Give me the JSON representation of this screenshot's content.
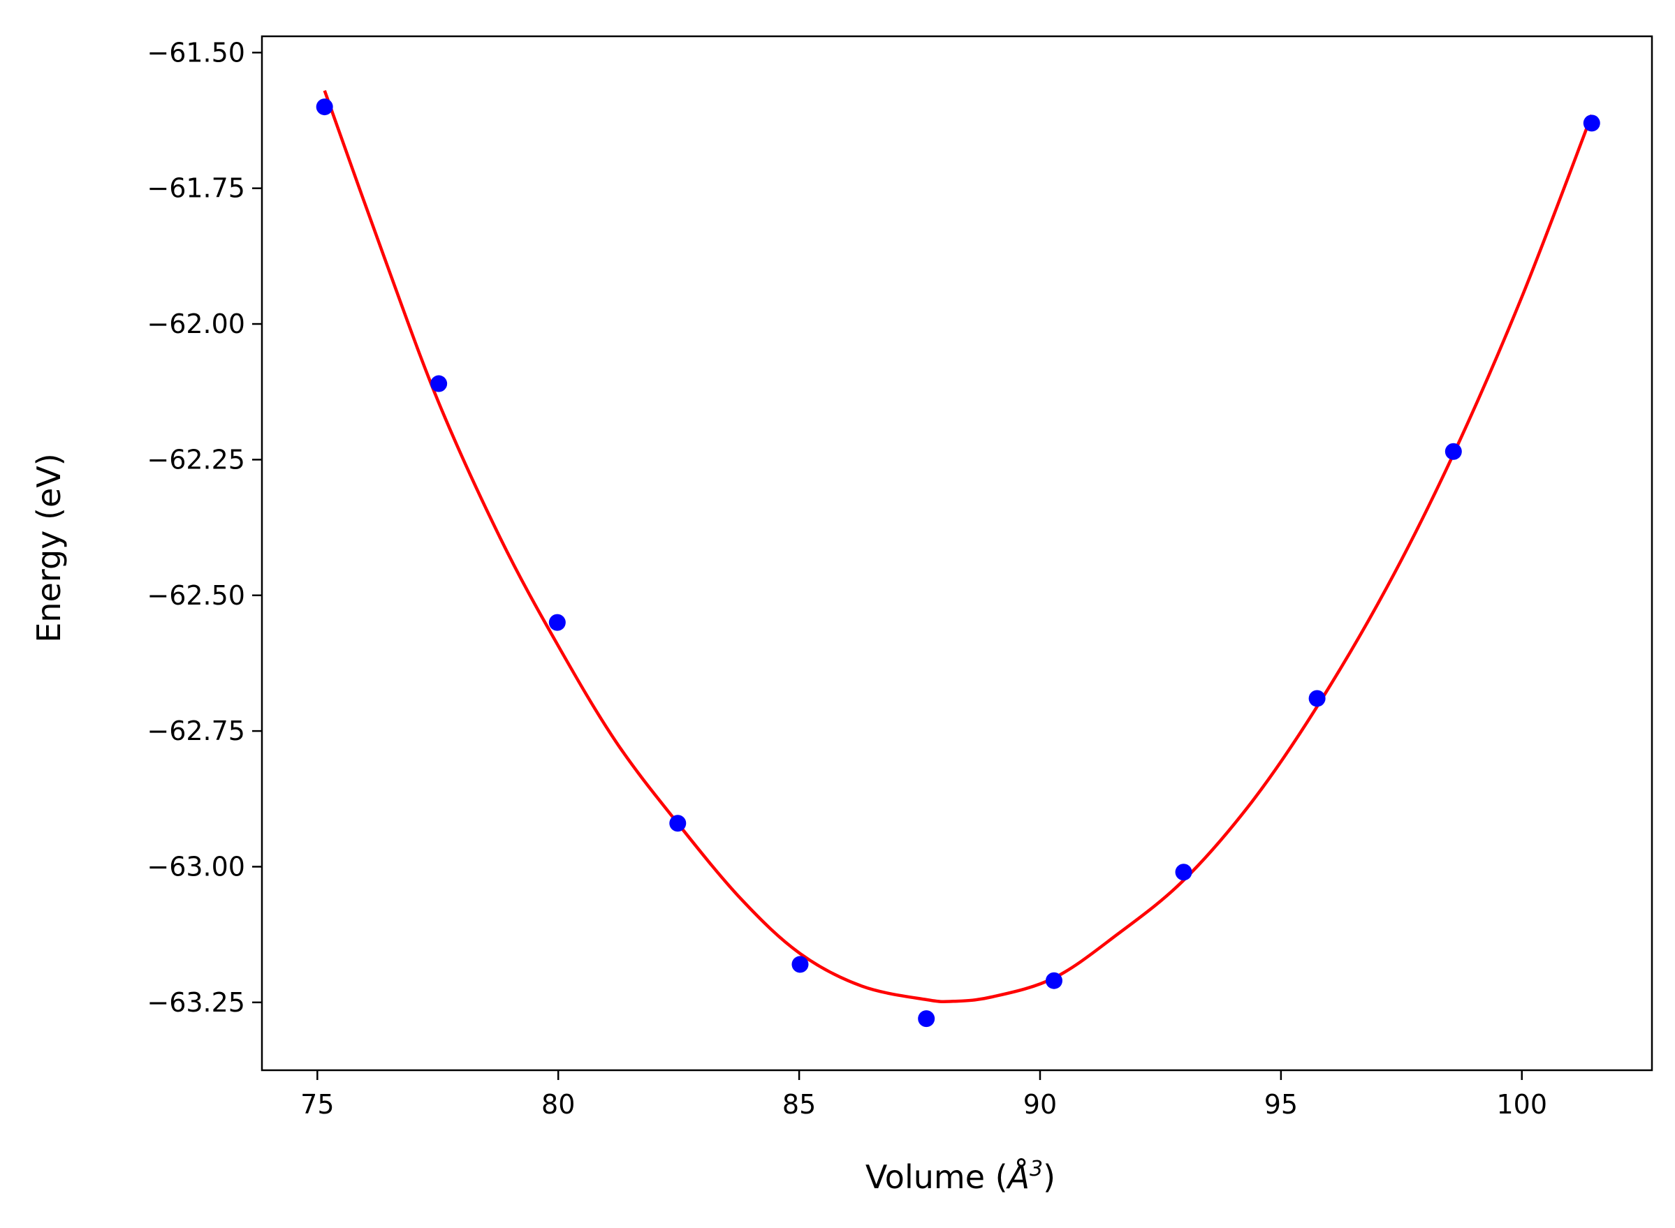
{
  "chart_data": {
    "type": "scatter",
    "title": "",
    "xlabel_prefix": "Volume (",
    "xlabel_unit": "Å",
    "xlabel_power": "3",
    "xlabel_suffix": ")",
    "ylabel": "Energy (eV)",
    "xlim": [
      73.85,
      102.7
    ],
    "ylim": [
      -63.375,
      -61.47
    ],
    "xticks": [
      75,
      80,
      85,
      90,
      95,
      100
    ],
    "xtick_labels": [
      "75",
      "80",
      "85",
      "90",
      "95",
      "100"
    ],
    "yticks": [
      -61.5,
      -61.75,
      -62.0,
      -62.25,
      -62.5,
      -62.75,
      -63.0,
      -63.25
    ],
    "ytick_labels": [
      "−61.50",
      "−61.75",
      "−62.00",
      "−62.25",
      "−62.50",
      "−62.75",
      "−63.00",
      "−63.25"
    ],
    "grid": false,
    "series": [
      {
        "kind": "points",
        "color": "#0000ff",
        "x": [
          75.15,
          77.52,
          79.98,
          82.48,
          85.02,
          87.64,
          90.29,
          92.98,
          95.75,
          98.58,
          101.45
        ],
        "y": [
          -61.6,
          -62.11,
          -62.55,
          -62.92,
          -63.18,
          -63.28,
          -63.21,
          -63.01,
          -62.69,
          -62.235,
          -61.63
        ]
      },
      {
        "kind": "fit-line",
        "color": "#ff0000",
        "x": [
          75.15,
          76.4,
          77.52,
          78.8,
          79.98,
          81.2,
          82.48,
          83.8,
          85.02,
          86.3,
          87.64,
          88.2,
          89.0,
          90.29,
          91.6,
          92.98,
          94.4,
          95.75,
          97.2,
          98.58,
          100.0,
          101.45
        ],
        "y": [
          -61.57,
          -61.88,
          -62.145,
          -62.395,
          -62.59,
          -62.77,
          -62.92,
          -63.06,
          -63.16,
          -63.22,
          -63.245,
          -63.248,
          -63.24,
          -63.205,
          -63.125,
          -63.025,
          -62.88,
          -62.705,
          -62.485,
          -62.24,
          -61.95,
          -61.615
        ]
      }
    ]
  }
}
